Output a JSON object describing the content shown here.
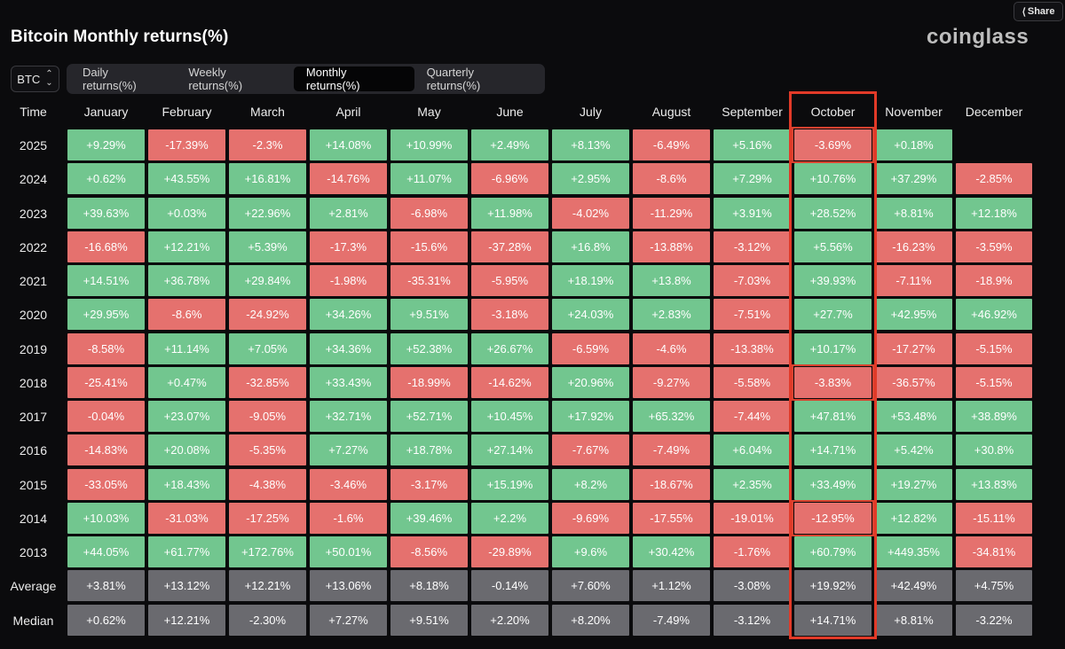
{
  "header": {
    "share_label": "Share",
    "title": "Bitcoin Monthly returns(%)",
    "brand": "coinglass"
  },
  "controls": {
    "symbol": "BTC",
    "tabs": [
      {
        "label": "Daily returns(%)",
        "active": false
      },
      {
        "label": "Weekly returns(%)",
        "active": false
      },
      {
        "label": "Monthly returns(%)",
        "active": true
      },
      {
        "label": "Quarterly returns(%)",
        "active": false
      }
    ]
  },
  "table": {
    "headers": [
      "Time",
      "January",
      "February",
      "March",
      "April",
      "May",
      "June",
      "July",
      "August",
      "September",
      "October",
      "November",
      "December"
    ],
    "rows": [
      {
        "label": "2025",
        "values": [
          "+9.29%",
          "-17.39%",
          "-2.3%",
          "+14.08%",
          "+10.99%",
          "+2.49%",
          "+8.13%",
          "-6.49%",
          "+5.16%",
          "-3.69%",
          "+0.18%",
          ""
        ]
      },
      {
        "label": "2024",
        "values": [
          "+0.62%",
          "+43.55%",
          "+16.81%",
          "-14.76%",
          "+11.07%",
          "-6.96%",
          "+2.95%",
          "-8.6%",
          "+7.29%",
          "+10.76%",
          "+37.29%",
          "-2.85%"
        ]
      },
      {
        "label": "2023",
        "values": [
          "+39.63%",
          "+0.03%",
          "+22.96%",
          "+2.81%",
          "-6.98%",
          "+11.98%",
          "-4.02%",
          "-11.29%",
          "+3.91%",
          "+28.52%",
          "+8.81%",
          "+12.18%"
        ]
      },
      {
        "label": "2022",
        "values": [
          "-16.68%",
          "+12.21%",
          "+5.39%",
          "-17.3%",
          "-15.6%",
          "-37.28%",
          "+16.8%",
          "-13.88%",
          "-3.12%",
          "+5.56%",
          "-16.23%",
          "-3.59%"
        ]
      },
      {
        "label": "2021",
        "values": [
          "+14.51%",
          "+36.78%",
          "+29.84%",
          "-1.98%",
          "-35.31%",
          "-5.95%",
          "+18.19%",
          "+13.8%",
          "-7.03%",
          "+39.93%",
          "-7.11%",
          "-18.9%"
        ]
      },
      {
        "label": "2020",
        "values": [
          "+29.95%",
          "-8.6%",
          "-24.92%",
          "+34.26%",
          "+9.51%",
          "-3.18%",
          "+24.03%",
          "+2.83%",
          "-7.51%",
          "+27.7%",
          "+42.95%",
          "+46.92%"
        ]
      },
      {
        "label": "2019",
        "values": [
          "-8.58%",
          "+11.14%",
          "+7.05%",
          "+34.36%",
          "+52.38%",
          "+26.67%",
          "-6.59%",
          "-4.6%",
          "-13.38%",
          "+10.17%",
          "-17.27%",
          "-5.15%"
        ]
      },
      {
        "label": "2018",
        "values": [
          "-25.41%",
          "+0.47%",
          "-32.85%",
          "+33.43%",
          "-18.99%",
          "-14.62%",
          "+20.96%",
          "-9.27%",
          "-5.58%",
          "-3.83%",
          "-36.57%",
          "-5.15%"
        ]
      },
      {
        "label": "2017",
        "values": [
          "-0.04%",
          "+23.07%",
          "-9.05%",
          "+32.71%",
          "+52.71%",
          "+10.45%",
          "+17.92%",
          "+65.32%",
          "-7.44%",
          "+47.81%",
          "+53.48%",
          "+38.89%"
        ]
      },
      {
        "label": "2016",
        "values": [
          "-14.83%",
          "+20.08%",
          "-5.35%",
          "+7.27%",
          "+18.78%",
          "+27.14%",
          "-7.67%",
          "-7.49%",
          "+6.04%",
          "+14.71%",
          "+5.42%",
          "+30.8%"
        ]
      },
      {
        "label": "2015",
        "values": [
          "-33.05%",
          "+18.43%",
          "-4.38%",
          "-3.46%",
          "-3.17%",
          "+15.19%",
          "+8.2%",
          "-18.67%",
          "+2.35%",
          "+33.49%",
          "+19.27%",
          "+13.83%"
        ]
      },
      {
        "label": "2014",
        "values": [
          "+10.03%",
          "-31.03%",
          "-17.25%",
          "-1.6%",
          "+39.46%",
          "+2.2%",
          "-9.69%",
          "-17.55%",
          "-19.01%",
          "-12.95%",
          "+12.82%",
          "-15.11%"
        ]
      },
      {
        "label": "2013",
        "values": [
          "+44.05%",
          "+61.77%",
          "+172.76%",
          "+50.01%",
          "-8.56%",
          "-29.89%",
          "+9.6%",
          "+30.42%",
          "-1.76%",
          "+60.79%",
          "+449.35%",
          "-34.81%"
        ]
      }
    ],
    "stats": [
      {
        "label": "Average",
        "values": [
          "+3.81%",
          "+13.12%",
          "+12.21%",
          "+13.06%",
          "+8.18%",
          "-0.14%",
          "+7.60%",
          "+1.12%",
          "-3.08%",
          "+19.92%",
          "+42.49%",
          "+4.75%"
        ]
      },
      {
        "label": "Median",
        "values": [
          "+0.62%",
          "+12.21%",
          "-2.30%",
          "+7.27%",
          "+9.51%",
          "+2.20%",
          "+8.20%",
          "-7.49%",
          "-3.12%",
          "+14.71%",
          "+8.81%",
          "-3.22%"
        ]
      }
    ]
  },
  "highlight": {
    "column": "October",
    "negative_years": [
      "2025",
      "2018",
      "2014"
    ],
    "color": "#e23a28"
  },
  "colors": {
    "positive": "#72c68f",
    "negative": "#e5716e",
    "stat": "#6a6a6f"
  }
}
